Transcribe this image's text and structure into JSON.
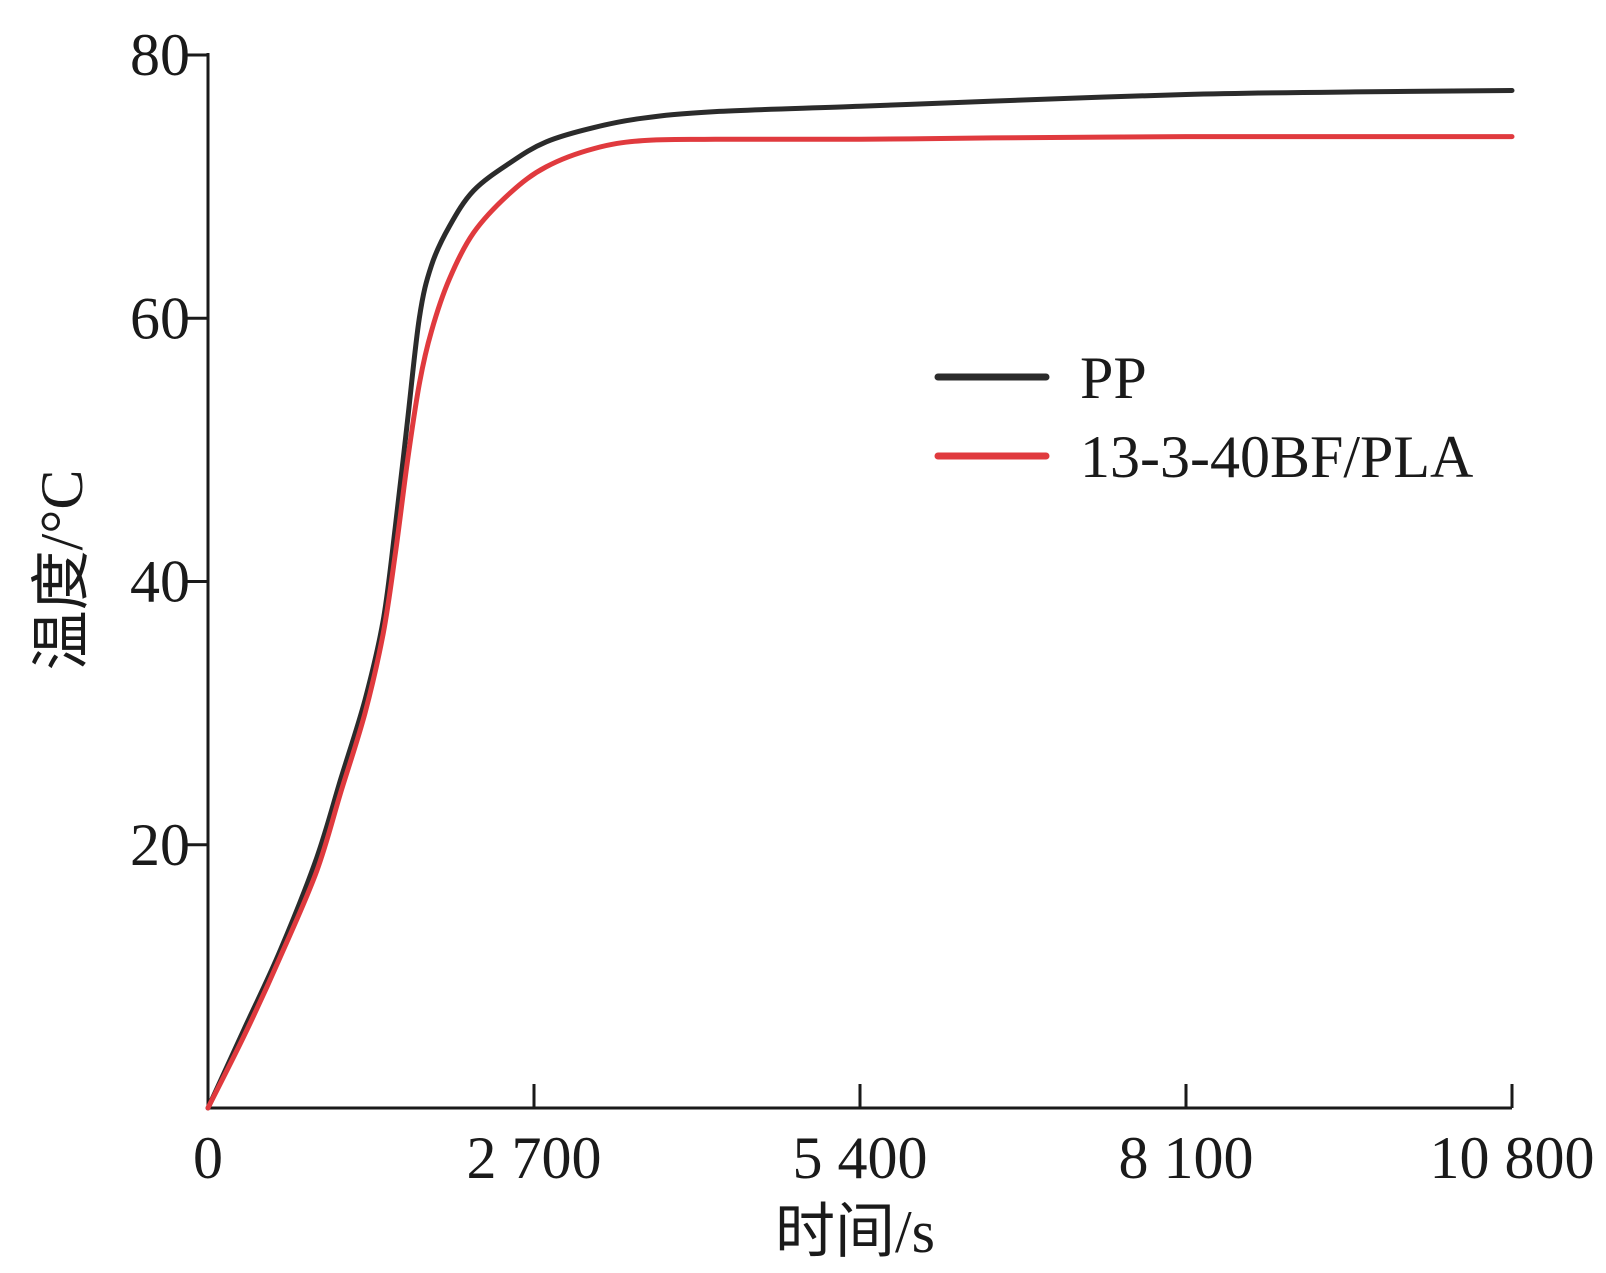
{
  "chart_data": {
    "type": "line",
    "title": "",
    "xlabel": "时间/s",
    "ylabel": "温度/°C",
    "xlim": [
      0,
      10800
    ],
    "ylim": [
      0,
      80
    ],
    "xticks": [
      0,
      2700,
      5400,
      8100,
      10800
    ],
    "xtick_labels": [
      "0",
      "2 700",
      "5 400",
      "8 100",
      "10 800"
    ],
    "yticks": [
      20,
      40,
      60,
      80
    ],
    "ytick_labels": [
      "20",
      "40",
      "60",
      "80"
    ],
    "grid": false,
    "legend_position": "upper-right",
    "series": [
      {
        "name": "PP",
        "color": "#2b2b2b",
        "x": [
          0,
          300,
          600,
          900,
          1100,
          1300,
          1450,
          1550,
          1650,
          1750,
          1850,
          2000,
          2200,
          2500,
          2800,
          3200,
          3600,
          4200,
          5400,
          6500,
          8100,
          9500,
          10800
        ],
        "y": [
          0,
          6,
          12,
          19,
          25,
          31,
          37,
          44,
          52,
          60,
          64,
          67,
          69.7,
          71.8,
          73.4,
          74.5,
          75.2,
          75.7,
          76.1,
          76.5,
          77,
          77.2,
          77.3
        ]
      },
      {
        "name": "13-3-40BF/PLA",
        "color": "#e03a3e",
        "x": [
          0,
          300,
          600,
          900,
          1100,
          1300,
          1450,
          1550,
          1650,
          1750,
          1850,
          2000,
          2200,
          2500,
          2800,
          3200,
          3600,
          4200,
          5400,
          6500,
          8100,
          9500,
          10800
        ],
        "y": [
          0,
          5.5,
          11.5,
          18,
          24,
          30,
          36,
          42,
          49,
          55,
          59,
          63,
          66.5,
          69.5,
          71.5,
          72.9,
          73.5,
          73.6,
          73.6,
          73.7,
          73.8,
          73.8,
          73.8
        ]
      }
    ]
  }
}
